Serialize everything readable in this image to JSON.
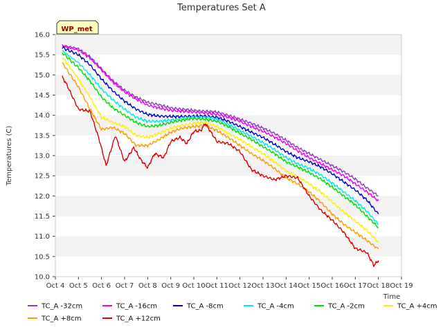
{
  "chart_data": {
    "type": "line",
    "title": "Temperatures Set A",
    "xlabel": "Time",
    "ylabel": "Temperatures (C)",
    "ylim": [
      10.0,
      16.0
    ],
    "xlim": [
      4,
      19
    ],
    "yticks": [
      10.0,
      10.5,
      11.0,
      11.5,
      12.0,
      12.5,
      13.0,
      13.5,
      14.0,
      14.5,
      15.0,
      15.5,
      16.0
    ],
    "xticks": [
      {
        "value": 4,
        "label": "Oct 4"
      },
      {
        "value": 5,
        "label": "Oct 5"
      },
      {
        "value": 6,
        "label": "Oct 6"
      },
      {
        "value": 7,
        "label": "Oct 7"
      },
      {
        "value": 8,
        "label": "Oct 8"
      },
      {
        "value": 9,
        "label": "Oct 9"
      },
      {
        "value": 10,
        "label": "Oct 10"
      },
      {
        "value": 11,
        "label": "Oct 11"
      },
      {
        "value": 12,
        "label": "Oct 12"
      },
      {
        "value": 13,
        "label": "Oct 13"
      },
      {
        "value": 14,
        "label": "Oct 14"
      },
      {
        "value": 15,
        "label": "Oct 15"
      },
      {
        "value": 16,
        "label": "Oct 16"
      },
      {
        "value": 17,
        "label": "Oct 17"
      },
      {
        "value": 18,
        "label": "Oct 18"
      },
      {
        "value": 19,
        "label": "Oct 19"
      }
    ],
    "annotation": "WP_met",
    "grid": "horizontal bands",
    "legend_position": "bottom",
    "series": [
      {
        "name": "TC_A -32cm",
        "color": "#9933cc",
        "x": [
          4.3,
          5.0,
          5.5,
          6.0,
          6.5,
          7.0,
          7.5,
          8.0,
          8.5,
          9.0,
          9.5,
          10.0,
          10.5,
          11.0,
          11.5,
          12.0,
          12.5,
          13.0,
          13.5,
          14.0,
          14.5,
          15.0,
          15.5,
          16.0,
          16.5,
          17.0,
          17.5,
          18.0
        ],
        "y": [
          15.72,
          15.65,
          15.45,
          15.15,
          14.85,
          14.62,
          14.45,
          14.32,
          14.26,
          14.18,
          14.15,
          14.12,
          14.1,
          14.08,
          14.0,
          13.9,
          13.8,
          13.68,
          13.55,
          13.38,
          13.2,
          13.05,
          12.9,
          12.75,
          12.6,
          12.42,
          12.2,
          12.0
        ]
      },
      {
        "name": "TC_A -16cm",
        "color": "#ee00ee",
        "x": [
          4.3,
          5.0,
          5.5,
          6.0,
          6.5,
          7.0,
          7.5,
          8.0,
          8.5,
          9.0,
          9.5,
          10.0,
          10.5,
          11.0,
          11.5,
          12.0,
          12.5,
          13.0,
          13.5,
          14.0,
          14.5,
          15.0,
          15.5,
          16.0,
          16.5,
          17.0,
          17.5,
          18.0
        ],
        "y": [
          15.72,
          15.62,
          15.42,
          15.12,
          14.82,
          14.58,
          14.4,
          14.25,
          14.18,
          14.12,
          14.1,
          14.08,
          14.06,
          14.02,
          13.95,
          13.85,
          13.72,
          13.6,
          13.46,
          13.3,
          13.12,
          12.95,
          12.8,
          12.65,
          12.5,
          12.3,
          12.1,
          11.88
        ]
      },
      {
        "name": "TC_A -8cm",
        "color": "#0000cc",
        "x": [
          4.3,
          5.0,
          5.5,
          6.0,
          6.5,
          7.0,
          7.5,
          8.0,
          8.5,
          9.0,
          9.5,
          10.0,
          10.5,
          11.0,
          11.5,
          12.0,
          12.5,
          13.0,
          13.5,
          14.0,
          14.5,
          15.0,
          15.5,
          16.0,
          16.5,
          17.0,
          17.5,
          18.0
        ],
        "y": [
          15.68,
          15.5,
          15.25,
          14.9,
          14.6,
          14.35,
          14.15,
          14.02,
          13.98,
          13.97,
          13.97,
          13.98,
          13.98,
          13.95,
          13.85,
          13.72,
          13.58,
          13.45,
          13.28,
          13.1,
          12.95,
          12.85,
          12.72,
          12.55,
          12.35,
          12.15,
          11.9,
          11.55
        ]
      },
      {
        "name": "TC_A -4cm",
        "color": "#00e5e5",
        "x": [
          4.3,
          5.0,
          5.5,
          6.0,
          6.5,
          7.0,
          7.5,
          8.0,
          8.5,
          9.0,
          9.5,
          10.0,
          10.5,
          11.0,
          11.5,
          12.0,
          12.5,
          13.0,
          13.5,
          14.0,
          14.5,
          15.0,
          15.5,
          16.0,
          16.5,
          17.0,
          17.5,
          18.0
        ],
        "y": [
          15.6,
          15.3,
          15.0,
          14.65,
          14.38,
          14.15,
          13.95,
          13.85,
          13.85,
          13.88,
          13.92,
          13.95,
          13.95,
          13.9,
          13.78,
          13.62,
          13.48,
          13.32,
          13.15,
          12.95,
          12.8,
          12.68,
          12.52,
          12.32,
          12.1,
          11.88,
          11.62,
          11.3
        ]
      },
      {
        "name": "TC_A -2cm",
        "color": "#00dd00",
        "x": [
          4.3,
          5.0,
          5.5,
          6.0,
          6.5,
          7.0,
          7.5,
          8.0,
          8.5,
          9.0,
          9.5,
          10.0,
          10.5,
          11.0,
          11.5,
          12.0,
          12.5,
          13.0,
          13.5,
          14.0,
          14.5,
          15.0,
          15.5,
          16.0,
          16.5,
          17.0,
          17.5,
          18.0
        ],
        "y": [
          15.55,
          15.18,
          14.85,
          14.45,
          14.18,
          14.0,
          13.82,
          13.72,
          13.75,
          13.82,
          13.88,
          13.92,
          13.9,
          13.85,
          13.72,
          13.55,
          13.4,
          13.22,
          13.05,
          12.85,
          12.72,
          12.58,
          12.42,
          12.22,
          12.0,
          11.78,
          11.5,
          11.22
        ]
      },
      {
        "name": "TC_A +4cm",
        "color": "#ffee00",
        "x": [
          4.3,
          5.0,
          5.5,
          6.0,
          6.5,
          7.0,
          7.5,
          8.0,
          8.5,
          9.0,
          9.5,
          10.0,
          10.5,
          11.0,
          11.5,
          12.0,
          12.5,
          13.0,
          13.5,
          14.0,
          14.5,
          15.0,
          15.5,
          16.0,
          16.5,
          17.0,
          17.5,
          18.0
        ],
        "y": [
          15.45,
          14.9,
          14.45,
          13.95,
          13.82,
          13.72,
          13.5,
          13.45,
          13.55,
          13.68,
          13.75,
          13.8,
          13.82,
          13.72,
          13.55,
          13.4,
          13.22,
          13.05,
          12.85,
          12.62,
          12.48,
          12.3,
          12.1,
          11.85,
          11.6,
          11.38,
          11.15,
          10.85
        ]
      },
      {
        "name": "TC_A +8cm",
        "color": "#ff9900",
        "x": [
          4.3,
          5.0,
          5.5,
          6.0,
          6.5,
          7.0,
          7.5,
          8.0,
          8.5,
          9.0,
          9.5,
          10.0,
          10.5,
          11.0,
          11.5,
          12.0,
          12.5,
          13.0,
          13.5,
          14.0,
          14.5,
          15.0,
          15.5,
          16.0,
          16.5,
          17.0,
          17.5,
          18.0
        ],
        "y": [
          15.3,
          14.7,
          14.15,
          13.65,
          13.7,
          13.55,
          13.25,
          13.25,
          13.4,
          13.58,
          13.68,
          13.72,
          13.75,
          13.62,
          13.45,
          13.25,
          13.05,
          12.88,
          12.68,
          12.45,
          12.3,
          12.1,
          11.85,
          11.55,
          11.3,
          11.1,
          10.9,
          10.68
        ]
      },
      {
        "name": "TC_A +12cm",
        "color": "#dd0000",
        "x": [
          4.3,
          4.5,
          5.0,
          5.5,
          5.9,
          6.2,
          6.6,
          7.0,
          7.4,
          7.7,
          8.0,
          8.3,
          8.7,
          9.0,
          9.4,
          9.7,
          10.0,
          10.3,
          10.5,
          11.0,
          11.5,
          12.0,
          12.5,
          13.0,
          13.5,
          14.0,
          14.5,
          15.0,
          15.5,
          16.0,
          16.5,
          17.0,
          17.5,
          17.8,
          18.0
        ],
        "y": [
          14.95,
          14.75,
          14.15,
          14.1,
          13.4,
          12.75,
          13.5,
          12.85,
          13.2,
          12.9,
          12.7,
          13.05,
          12.95,
          13.35,
          13.45,
          13.3,
          13.6,
          13.62,
          13.8,
          13.35,
          13.3,
          13.1,
          12.65,
          12.5,
          12.4,
          12.5,
          12.45,
          12.0,
          11.65,
          11.4,
          11.1,
          10.7,
          10.6,
          10.28,
          10.4
        ]
      }
    ]
  }
}
